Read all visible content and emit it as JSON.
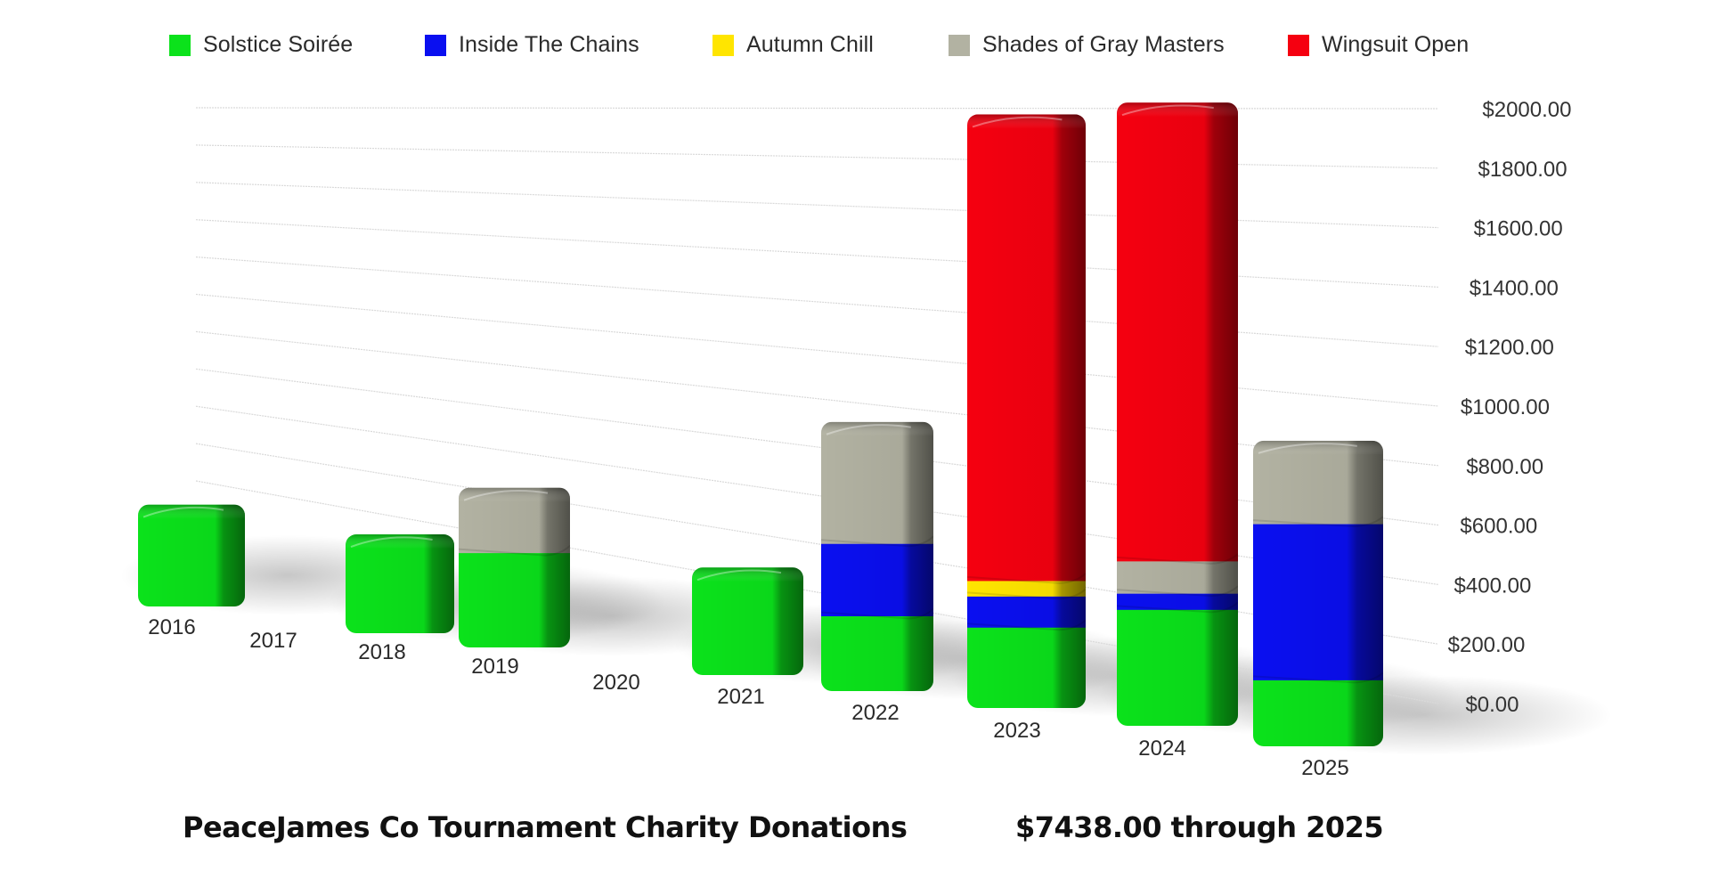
{
  "legend": [
    {
      "label": "Solstice Soirée",
      "color": "#0be21b",
      "x": 0
    },
    {
      "label": "Inside The Chains",
      "color": "#0a0ff0",
      "x": 287
    },
    {
      "label": "Autumn Chill",
      "color": "#ffe500",
      "x": 610
    },
    {
      "label": "Shades of Gray Masters",
      "color": "#b2b2a2",
      "x": 875
    },
    {
      "label": "Wingsuit Open",
      "color": "#f50010",
      "x": 1256
    }
  ],
  "caption": {
    "title": "PeaceJames Co Tournament Charity Donations",
    "total": "$7438.00 through 2025"
  },
  "chart_data": {
    "type": "bar",
    "stacked": true,
    "style": "3d-perspective",
    "title": "PeaceJames Co Tournament Charity Donations",
    "subtitle": "$7438.00 through 2025",
    "xlabel": "",
    "ylabel": "",
    "ylim": [
      0,
      2000
    ],
    "y_axis_position": "right",
    "y_ticks": [
      "$0.00",
      "$200.00",
      "$400.00",
      "$600.00",
      "$800.00",
      "$1000.00",
      "$1200.00",
      "$1400.00",
      "$1600.00",
      "$1800.00",
      "$2000.00"
    ],
    "grid": true,
    "legend_position": "top",
    "categories": [
      "2016",
      "2017",
      "2018",
      "2019",
      "2020",
      "2021",
      "2022",
      "2023",
      "2024",
      "2025"
    ],
    "series": [
      {
        "name": "Solstice Soirée",
        "color": "#0be21b",
        "values": [
          400,
          0,
          380,
          350,
          0,
          380,
          260,
          260,
          360,
          200
        ]
      },
      {
        "name": "Inside The Chains",
        "color": "#0a0ff0",
        "values": [
          0,
          0,
          0,
          0,
          0,
          0,
          250,
          100,
          50,
          470
        ]
      },
      {
        "name": "Autumn Chill",
        "color": "#ffe500",
        "values": [
          0,
          0,
          0,
          0,
          0,
          0,
          0,
          50,
          0,
          0
        ]
      },
      {
        "name": "Shades of Gray Masters",
        "color": "#b2b2a2",
        "values": [
          0,
          0,
          0,
          240,
          0,
          0,
          420,
          0,
          100,
          250
        ]
      },
      {
        "name": "Wingsuit Open",
        "color": "#f50010",
        "values": [
          0,
          0,
          0,
          0,
          0,
          0,
          0,
          1500,
          1418,
          0
        ]
      }
    ],
    "total": 7438
  }
}
